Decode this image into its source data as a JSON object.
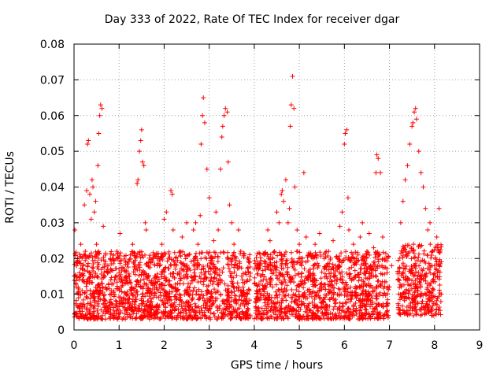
{
  "chart_data": {
    "type": "scatter",
    "title": "Day 333 of 2022, Rate Of TEC Index for receiver dgar",
    "xlabel": "GPS time / hours",
    "ylabel": "ROTI / TECUs",
    "xlim": [
      0,
      9
    ],
    "ylim": [
      0,
      0.08
    ],
    "xticks": [
      "0",
      "1",
      "2",
      "3",
      "4",
      "5",
      "6",
      "7",
      "8",
      "9"
    ],
    "yticks": [
      "0",
      "0.01",
      "0.02",
      "0.03",
      "0.04",
      "0.05",
      "0.06",
      "0.07",
      "0.08"
    ],
    "grid": true,
    "marker": "+",
    "series_color": "#ff0000",
    "points": [
      [
        0.02,
        0.028
      ],
      [
        0.05,
        0.012
      ],
      [
        0.08,
        0.02
      ],
      [
        0.1,
        0.009
      ],
      [
        0.12,
        0.016
      ],
      [
        0.15,
        0.024
      ],
      [
        0.18,
        0.011
      ],
      [
        0.2,
        0.018
      ],
      [
        0.23,
        0.035
      ],
      [
        0.25,
        0.022
      ],
      [
        0.28,
        0.039
      ],
      [
        0.3,
        0.052
      ],
      [
        0.32,
        0.053
      ],
      [
        0.35,
        0.038
      ],
      [
        0.38,
        0.031
      ],
      [
        0.4,
        0.042
      ],
      [
        0.42,
        0.04
      ],
      [
        0.45,
        0.033
      ],
      [
        0.48,
        0.036
      ],
      [
        0.5,
        0.024
      ],
      [
        0.53,
        0.046
      ],
      [
        0.55,
        0.055
      ],
      [
        0.57,
        0.06
      ],
      [
        0.59,
        0.063
      ],
      [
        0.62,
        0.062
      ],
      [
        0.65,
        0.029
      ],
      [
        0.68,
        0.015
      ],
      [
        0.7,
        0.012
      ],
      [
        0.75,
        0.018
      ],
      [
        0.8,
        0.01
      ],
      [
        0.85,
        0.02
      ],
      [
        0.9,
        0.014
      ],
      [
        0.95,
        0.022
      ],
      [
        1.0,
        0.016
      ],
      [
        1.02,
        0.027
      ],
      [
        1.05,
        0.012
      ],
      [
        1.1,
        0.009
      ],
      [
        1.15,
        0.019
      ],
      [
        1.2,
        0.013
      ],
      [
        1.25,
        0.021
      ],
      [
        1.3,
        0.024
      ],
      [
        1.35,
        0.017
      ],
      [
        1.4,
        0.041
      ],
      [
        1.42,
        0.042
      ],
      [
        1.45,
        0.05
      ],
      [
        1.48,
        0.053
      ],
      [
        1.5,
        0.056
      ],
      [
        1.52,
        0.047
      ],
      [
        1.55,
        0.046
      ],
      [
        1.58,
        0.03
      ],
      [
        1.6,
        0.028
      ],
      [
        1.65,
        0.015
      ],
      [
        1.7,
        0.011
      ],
      [
        1.75,
        0.02
      ],
      [
        1.8,
        0.013
      ],
      [
        1.85,
        0.018
      ],
      [
        1.9,
        0.012
      ],
      [
        1.95,
        0.024
      ],
      [
        2.0,
        0.031
      ],
      [
        2.05,
        0.033
      ],
      [
        2.1,
        0.02
      ],
      [
        2.15,
        0.039
      ],
      [
        2.18,
        0.038
      ],
      [
        2.2,
        0.028
      ],
      [
        2.25,
        0.017
      ],
      [
        2.3,
        0.013
      ],
      [
        2.35,
        0.022
      ],
      [
        2.4,
        0.026
      ],
      [
        2.45,
        0.018
      ],
      [
        2.5,
        0.03
      ],
      [
        2.55,
        0.021
      ],
      [
        2.6,
        0.015
      ],
      [
        2.65,
        0.028
      ],
      [
        2.7,
        0.03
      ],
      [
        2.75,
        0.024
      ],
      [
        2.8,
        0.032
      ],
      [
        2.82,
        0.052
      ],
      [
        2.85,
        0.06
      ],
      [
        2.87,
        0.065
      ],
      [
        2.9,
        0.058
      ],
      [
        2.95,
        0.045
      ],
      [
        3.0,
        0.037
      ],
      [
        3.05,
        0.02
      ],
      [
        3.1,
        0.025
      ],
      [
        3.15,
        0.033
      ],
      [
        3.2,
        0.028
      ],
      [
        3.25,
        0.045
      ],
      [
        3.28,
        0.054
      ],
      [
        3.3,
        0.057
      ],
      [
        3.33,
        0.06
      ],
      [
        3.36,
        0.062
      ],
      [
        3.4,
        0.061
      ],
      [
        3.42,
        0.047
      ],
      [
        3.45,
        0.035
      ],
      [
        3.5,
        0.03
      ],
      [
        3.55,
        0.024
      ],
      [
        3.6,
        0.018
      ],
      [
        3.65,
        0.028
      ],
      [
        3.7,
        0.022
      ],
      [
        3.75,
        0.012
      ],
      [
        3.8,
        0.016
      ],
      [
        3.85,
        0.01
      ],
      [
        3.9,
        0.014
      ],
      [
        4.05,
        0.011
      ],
      [
        4.1,
        0.017
      ],
      [
        4.15,
        0.009
      ],
      [
        4.2,
        0.014
      ],
      [
        4.25,
        0.019
      ],
      [
        4.3,
        0.028
      ],
      [
        4.35,
        0.025
      ],
      [
        4.4,
        0.018
      ],
      [
        4.45,
        0.022
      ],
      [
        4.5,
        0.033
      ],
      [
        4.55,
        0.03
      ],
      [
        4.6,
        0.038
      ],
      [
        4.62,
        0.039
      ],
      [
        4.65,
        0.036
      ],
      [
        4.7,
        0.042
      ],
      [
        4.75,
        0.03
      ],
      [
        4.78,
        0.034
      ],
      [
        4.8,
        0.057
      ],
      [
        4.82,
        0.063
      ],
      [
        4.85,
        0.071
      ],
      [
        4.88,
        0.062
      ],
      [
        4.9,
        0.04
      ],
      [
        4.95,
        0.028
      ],
      [
        5.0,
        0.024
      ],
      [
        5.05,
        0.018
      ],
      [
        5.1,
        0.044
      ],
      [
        5.15,
        0.026
      ],
      [
        5.2,
        0.021
      ],
      [
        5.25,
        0.014
      ],
      [
        5.3,
        0.02
      ],
      [
        5.35,
        0.024
      ],
      [
        5.4,
        0.018
      ],
      [
        5.45,
        0.027
      ],
      [
        5.5,
        0.012
      ],
      [
        5.55,
        0.02
      ],
      [
        5.6,
        0.015
      ],
      [
        5.65,
        0.022
      ],
      [
        5.7,
        0.011
      ],
      [
        5.75,
        0.025
      ],
      [
        5.8,
        0.018
      ],
      [
        5.85,
        0.02
      ],
      [
        5.9,
        0.029
      ],
      [
        5.95,
        0.033
      ],
      [
        6.0,
        0.052
      ],
      [
        6.02,
        0.055
      ],
      [
        6.05,
        0.056
      ],
      [
        6.08,
        0.037
      ],
      [
        6.1,
        0.028
      ],
      [
        6.15,
        0.02
      ],
      [
        6.2,
        0.024
      ],
      [
        6.25,
        0.015
      ],
      [
        6.3,
        0.021
      ],
      [
        6.35,
        0.026
      ],
      [
        6.4,
        0.03
      ],
      [
        6.45,
        0.018
      ],
      [
        6.5,
        0.022
      ],
      [
        6.55,
        0.027
      ],
      [
        6.6,
        0.016
      ],
      [
        6.65,
        0.023
      ],
      [
        6.7,
        0.044
      ],
      [
        6.72,
        0.049
      ],
      [
        6.75,
        0.048
      ],
      [
        6.8,
        0.044
      ],
      [
        6.85,
        0.026
      ],
      [
        6.9,
        0.02
      ],
      [
        6.95,
        0.016
      ],
      [
        7.0,
        0.012
      ],
      [
        7.05,
        0.018
      ],
      [
        7.2,
        0.014
      ],
      [
        7.25,
        0.03
      ],
      [
        7.3,
        0.036
      ],
      [
        7.35,
        0.042
      ],
      [
        7.4,
        0.046
      ],
      [
        7.45,
        0.052
      ],
      [
        7.5,
        0.057
      ],
      [
        7.52,
        0.058
      ],
      [
        7.55,
        0.061
      ],
      [
        7.58,
        0.062
      ],
      [
        7.6,
        0.059
      ],
      [
        7.65,
        0.05
      ],
      [
        7.7,
        0.044
      ],
      [
        7.75,
        0.04
      ],
      [
        7.8,
        0.034
      ],
      [
        7.85,
        0.028
      ],
      [
        7.9,
        0.03
      ],
      [
        7.95,
        0.022
      ],
      [
        8.0,
        0.018
      ],
      [
        8.05,
        0.026
      ],
      [
        8.1,
        0.034
      ],
      [
        8.12,
        0.022
      ],
      [
        8.15,
        0.01
      ]
    ],
    "dense_bands": [
      {
        "x_from": 0.0,
        "x_to": 3.92,
        "y_low": 0.003,
        "y_high": 0.022
      },
      {
        "x_from": 4.0,
        "x_to": 6.98,
        "y_low": 0.003,
        "y_high": 0.022
      },
      {
        "x_from": 7.18,
        "x_to": 8.15,
        "y_low": 0.004,
        "y_high": 0.024
      }
    ]
  }
}
